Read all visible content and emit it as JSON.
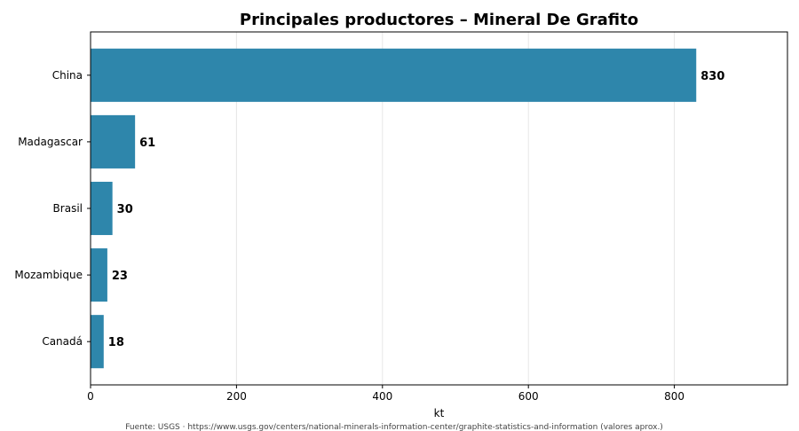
{
  "chart_data": {
    "type": "bar",
    "orientation": "horizontal",
    "title": "Principales productores – Mineral De Grafito",
    "xlabel": "kt",
    "ylabel": "",
    "categories": [
      "China",
      "Madagascar",
      "Brasil",
      "Mozambique",
      "Canadá"
    ],
    "values": [
      830,
      61,
      30,
      23,
      18
    ],
    "value_labels": [
      "830",
      "61",
      "30",
      "23",
      "18"
    ],
    "xlim": [
      0,
      955
    ],
    "xticks": [
      0,
      200,
      400,
      600,
      800
    ],
    "xtick_labels": [
      "0",
      "200",
      "400",
      "600",
      "800"
    ],
    "grid": "vertical",
    "legend": "none",
    "bar_color": "#2e86ab",
    "source": "Fuente: USGS · https://www.usgs.gov/centers/national-minerals-information-center/graphite-statistics-and-information (valores aprox.)"
  }
}
